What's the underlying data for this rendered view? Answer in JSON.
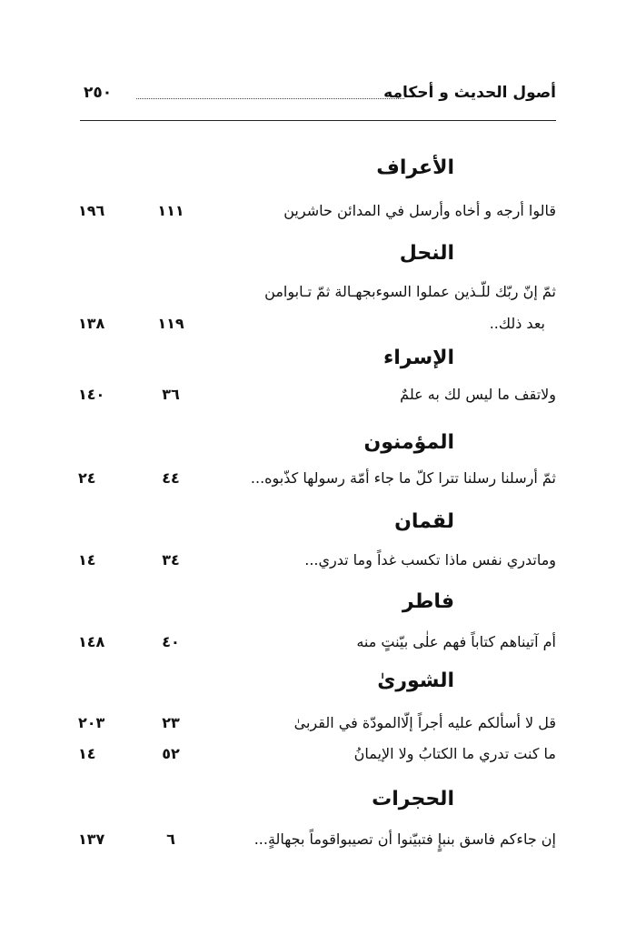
{
  "header": {
    "page_number": "٢٥٠",
    "book_title": "أصول الحديث و أحكامه"
  },
  "sections": [
    {
      "surah": "الأعراف",
      "rows": [
        {
          "verse": "قالوا أرجه و أخاه وأرسل في المدائن حاشرين",
          "ayah": "١١١",
          "page": "١٩٦"
        }
      ]
    },
    {
      "surah": "النحل",
      "rows": [
        {
          "verse": "ثمّ إنّ ربّك للّـذين عملوا السوءبجهـالة ثمّ تـابوامن",
          "verse_cont": "بعد ذلك..",
          "ayah": "١١٩",
          "page": "١٣٨"
        }
      ]
    },
    {
      "surah": "الإسراء",
      "rows": [
        {
          "verse": "ولاتقف ما ليس لك به علمٌ",
          "ayah": "٣٦",
          "page": "١٤٠"
        }
      ]
    },
    {
      "surah": "المؤمنون",
      "rows": [
        {
          "verse": "ثمّ أرسلنا رسلنا تترا كلّ ما جاء أمّة رسولها كذّبوه...",
          "ayah": "٤٤",
          "page": "٢٤"
        }
      ]
    },
    {
      "surah": "لقمان",
      "rows": [
        {
          "verse": "وماتدري نفس ماذا تكسب غداً وما تدري...",
          "ayah": "٣٤",
          "page": "١٤"
        }
      ]
    },
    {
      "surah": "فاطر",
      "rows": [
        {
          "verse": "أم آتيناهم كتاباً فهم علٰى بيّنتٍ منه",
          "ayah": "٤٠",
          "page": "١٤٨"
        }
      ]
    },
    {
      "surah": "الشورىٰ",
      "rows": [
        {
          "verse": "قل لا أسألكم عليه أجراً إلّاالمودّة في القربىٰ",
          "ayah": "٢٣",
          "page": "٢٠٣"
        },
        {
          "verse": "ما كنت تدري ما الكتابُ ولا الإيمانُ",
          "ayah": "٥٢",
          "page": "١٤"
        }
      ]
    },
    {
      "surah": "الحجرات",
      "rows": [
        {
          "verse": "إن جاءكم فاسق بنبإٍ فتبيّنوا أن تصيبواقوماً بجهالةٍ...",
          "ayah": "٦",
          "page": "١٣٧"
        }
      ]
    }
  ]
}
